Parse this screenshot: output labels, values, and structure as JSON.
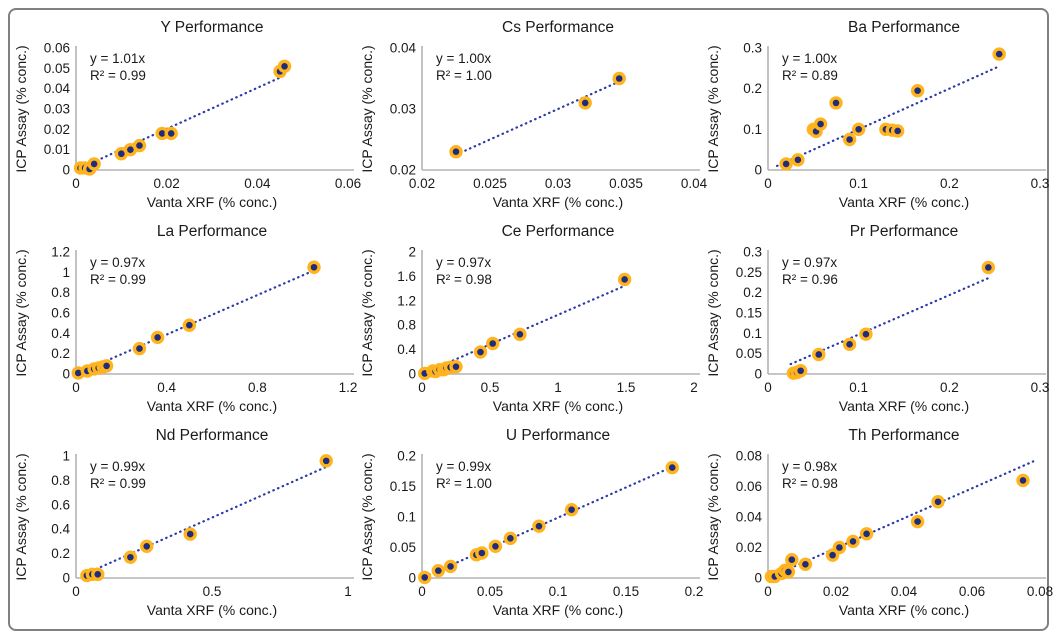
{
  "figure": {
    "kind": "3x3 scatter plot panel comparing Vanta XRF readings to ICP Assay values for nine elements",
    "border_color": "#808080",
    "background": "#ffffff"
  },
  "palette": {
    "marker_fill": "#1f2d7b",
    "marker_ring": "#ffb41e",
    "trend_line": "#2a3aa8",
    "axis_line": "#b3b3b3",
    "text": "#1a1a1a"
  },
  "chart_data": [
    {
      "type": "scatter",
      "title": "Y Performance",
      "equation": "y = 1.01x",
      "r_squared": "R² = 0.99",
      "slope": 1.01,
      "xlabel": "Vanta XRF (% conc.)",
      "ylabel": "ICP Assay (% conc.)",
      "xlim": [
        0,
        0.06
      ],
      "ylim": [
        0,
        0.06
      ],
      "xticks": [
        0,
        0.02,
        0.04,
        0.06
      ],
      "xtick_labels": [
        "0",
        "0.02",
        "0.04",
        "0.06"
      ],
      "yticks": [
        0,
        0.01,
        0.02,
        0.03,
        0.04,
        0.05,
        0.06
      ],
      "ytick_labels": [
        "0",
        "0.01",
        "0.02",
        "0.03",
        "0.04",
        "0.05",
        "0.06"
      ],
      "trend_x": [
        0.0005,
        0.046
      ],
      "points": [
        [
          0.001,
          0.001
        ],
        [
          0.002,
          0.001
        ],
        [
          0.003,
          0.0005
        ],
        [
          0.004,
          0.003
        ],
        [
          0.01,
          0.008
        ],
        [
          0.012,
          0.01
        ],
        [
          0.014,
          0.012
        ],
        [
          0.019,
          0.018
        ],
        [
          0.021,
          0.018
        ],
        [
          0.045,
          0.0485
        ],
        [
          0.046,
          0.051
        ]
      ]
    },
    {
      "type": "scatter",
      "title": "Cs Performance",
      "equation": "y = 1.00x",
      "r_squared": "R² = 1.00",
      "slope": 1.0,
      "xlabel": "Vanta XRF (% conc.)",
      "ylabel": "ICP Assay (% conc.)",
      "xlim": [
        0.02,
        0.04
      ],
      "ylim": [
        0.02,
        0.04
      ],
      "xticks": [
        0.02,
        0.025,
        0.03,
        0.035,
        0.04
      ],
      "xtick_labels": [
        "0.02",
        "0.025",
        "0.03",
        "0.035",
        "0.04"
      ],
      "yticks": [
        0.02,
        0.03,
        0.04
      ],
      "ytick_labels": [
        "0.02",
        "0.03",
        "0.04"
      ],
      "trend_x": [
        0.0225,
        0.0345
      ],
      "points": [
        [
          0.0225,
          0.023
        ],
        [
          0.032,
          0.031
        ],
        [
          0.0345,
          0.035
        ]
      ]
    },
    {
      "type": "scatter",
      "title": "Ba Performance",
      "equation": "y = 1.00x",
      "r_squared": "R² = 0.89",
      "slope": 1.0,
      "xlabel": "Vanta XRF (% conc.)",
      "ylabel": "ICP Assay (% conc.)",
      "xlim": [
        0,
        0.3
      ],
      "ylim": [
        0,
        0.3
      ],
      "xticks": [
        0,
        0.1,
        0.2,
        0.3
      ],
      "xtick_labels": [
        "0",
        "0.1",
        "0.2",
        "0.3"
      ],
      "yticks": [
        0,
        0.1,
        0.2,
        0.3
      ],
      "ytick_labels": [
        "0",
        "0.1",
        "0.2",
        "0.3"
      ],
      "trend_x": [
        0.01,
        0.255
      ],
      "points": [
        [
          0.02,
          0.015
        ],
        [
          0.033,
          0.025
        ],
        [
          0.05,
          0.1
        ],
        [
          0.053,
          0.095
        ],
        [
          0.058,
          0.113
        ],
        [
          0.075,
          0.165
        ],
        [
          0.09,
          0.075
        ],
        [
          0.1,
          0.1
        ],
        [
          0.13,
          0.1
        ],
        [
          0.137,
          0.098
        ],
        [
          0.143,
          0.096
        ],
        [
          0.165,
          0.195
        ],
        [
          0.255,
          0.285
        ]
      ]
    },
    {
      "type": "scatter",
      "title": "La Performance",
      "equation": "y = 0.97x",
      "r_squared": "R² = 0.99",
      "slope": 0.97,
      "xlabel": "Vanta XRF (% conc.)",
      "ylabel": "ICP Assay (% conc.)",
      "xlim": [
        0,
        1.2
      ],
      "ylim": [
        0,
        1.2
      ],
      "xticks": [
        0,
        0.4,
        0.8,
        1.2
      ],
      "xtick_labels": [
        "0",
        "0.4",
        "0.8",
        "1.2"
      ],
      "yticks": [
        0,
        0.2,
        0.4,
        0.6,
        0.8,
        1,
        1.2
      ],
      "ytick_labels": [
        "0",
        "0.2",
        "0.4",
        "0.6",
        "0.8",
        "1",
        "1.2"
      ],
      "trend_x": [
        0.01,
        1.05
      ],
      "points": [
        [
          0.01,
          0.01
        ],
        [
          0.05,
          0.03
        ],
        [
          0.08,
          0.05
        ],
        [
          0.1,
          0.06
        ],
        [
          0.12,
          0.07
        ],
        [
          0.135,
          0.08
        ],
        [
          0.28,
          0.25
        ],
        [
          0.36,
          0.36
        ],
        [
          0.5,
          0.48
        ],
        [
          1.05,
          1.05
        ]
      ]
    },
    {
      "type": "scatter",
      "title": "Ce Performance",
      "equation": "y = 0.97x",
      "r_squared": "R² = 0.98",
      "slope": 0.97,
      "xlabel": "Vanta XRF (% conc.)",
      "ylabel": "ICP Assay (% conc.)",
      "xlim": [
        0,
        2
      ],
      "ylim": [
        0,
        2
      ],
      "xticks": [
        0,
        0.5,
        1,
        1.5,
        2
      ],
      "xtick_labels": [
        "0",
        "0.5",
        "1",
        "1.5",
        "2"
      ],
      "yticks": [
        0,
        0.4,
        0.8,
        1.2,
        1.6,
        2
      ],
      "ytick_labels": [
        "0",
        "0.4",
        "0.8",
        "1.2",
        "1.6",
        "2"
      ],
      "trend_x": [
        0.02,
        1.49
      ],
      "points": [
        [
          0.02,
          0.01
        ],
        [
          0.08,
          0.05
        ],
        [
          0.1,
          0.04
        ],
        [
          0.13,
          0.07
        ],
        [
          0.16,
          0.07
        ],
        [
          0.18,
          0.1
        ],
        [
          0.21,
          0.11
        ],
        [
          0.25,
          0.12
        ],
        [
          0.43,
          0.36
        ],
        [
          0.52,
          0.5
        ],
        [
          0.72,
          0.65
        ],
        [
          1.49,
          1.55
        ]
      ]
    },
    {
      "type": "scatter",
      "title": "Pr Performance",
      "equation": "y = 0.97x",
      "r_squared": "R² = 0.96",
      "slope": 0.97,
      "xlabel": "Vanta XRF (% conc.)",
      "ylabel": "ICP Assay (% conc.)",
      "xlim": [
        0,
        0.3
      ],
      "ylim": [
        0,
        0.3
      ],
      "xticks": [
        0,
        0.1,
        0.2,
        0.3
      ],
      "xtick_labels": [
        "0",
        "0.1",
        "0.2",
        "0.3"
      ],
      "yticks": [
        0,
        0.05,
        0.1,
        0.15,
        0.2,
        0.25,
        0.3
      ],
      "ytick_labels": [
        "0",
        "0.05",
        "0.1",
        "0.15",
        "0.2",
        "0.25",
        "0.3"
      ],
      "trend_x": [
        0.025,
        0.245
      ],
      "points": [
        [
          0.028,
          0.002
        ],
        [
          0.032,
          0.004
        ],
        [
          0.036,
          0.008
        ],
        [
          0.056,
          0.048
        ],
        [
          0.09,
          0.073
        ],
        [
          0.108,
          0.098
        ],
        [
          0.243,
          0.262
        ]
      ]
    },
    {
      "type": "scatter",
      "title": "Nd Performance",
      "equation": "y = 0.99x",
      "r_squared": "R² = 0.99",
      "slope": 0.99,
      "xlabel": "Vanta XRF (% conc.)",
      "ylabel": "ICP Assay (% conc.)",
      "xlim": [
        0,
        1
      ],
      "ylim": [
        0,
        1
      ],
      "xticks": [
        0,
        0.5,
        1
      ],
      "xtick_labels": [
        "0",
        "0.5",
        "1"
      ],
      "yticks": [
        0,
        0.2,
        0.4,
        0.6,
        0.8,
        1
      ],
      "ytick_labels": [
        "0",
        "0.2",
        "0.4",
        "0.6",
        "0.8",
        "1"
      ],
      "trend_x": [
        0.04,
        0.93
      ],
      "points": [
        [
          0.04,
          0.02
        ],
        [
          0.06,
          0.03
        ],
        [
          0.08,
          0.03
        ],
        [
          0.2,
          0.17
        ],
        [
          0.26,
          0.26
        ],
        [
          0.42,
          0.36
        ],
        [
          0.92,
          0.96
        ]
      ]
    },
    {
      "type": "scatter",
      "title": "U Performance",
      "equation": "y = 0.99x",
      "r_squared": "R² = 1.00",
      "slope": 0.99,
      "xlabel": "Vanta XRF (% conc.)",
      "ylabel": "ICP Assay (% conc.)",
      "xlim": [
        0,
        0.2
      ],
      "ylim": [
        0,
        0.2
      ],
      "xticks": [
        0,
        0.05,
        0.1,
        0.15,
        0.2
      ],
      "xtick_labels": [
        "0",
        "0.05",
        "0.1",
        "0.15",
        "0.2"
      ],
      "yticks": [
        0,
        0.05,
        0.1,
        0.15,
        0.2
      ],
      "ytick_labels": [
        "0",
        "0.05",
        "0.1",
        "0.15",
        "0.2"
      ],
      "trend_x": [
        0.002,
        0.185
      ],
      "points": [
        [
          0.002,
          0.001
        ],
        [
          0.012,
          0.012
        ],
        [
          0.021,
          0.019
        ],
        [
          0.04,
          0.038
        ],
        [
          0.044,
          0.041
        ],
        [
          0.054,
          0.052
        ],
        [
          0.065,
          0.065
        ],
        [
          0.086,
          0.085
        ],
        [
          0.11,
          0.112
        ],
        [
          0.184,
          0.181
        ]
      ]
    },
    {
      "type": "scatter",
      "title": "Th Performance",
      "equation": "y = 0.98x",
      "r_squared": "R² = 0.98",
      "slope": 0.98,
      "xlabel": "Vanta XRF (% conc.)",
      "ylabel": "ICP Assay (% conc.)",
      "xlim": [
        0,
        0.08
      ],
      "ylim": [
        0,
        0.08
      ],
      "xticks": [
        0,
        0.02,
        0.04,
        0.06,
        0.08
      ],
      "xtick_labels": [
        "0",
        "0.02",
        "0.04",
        "0.06",
        "0.08"
      ],
      "yticks": [
        0,
        0.02,
        0.04,
        0.06,
        0.08
      ],
      "ytick_labels": [
        "0",
        "0.02",
        "0.04",
        "0.06",
        "0.08"
      ],
      "trend_x": [
        0.001,
        0.078
      ],
      "points": [
        [
          0.001,
          0.001
        ],
        [
          0.002,
          0.001
        ],
        [
          0.004,
          0.003
        ],
        [
          0.005,
          0.005
        ],
        [
          0.006,
          0.004
        ],
        [
          0.007,
          0.012
        ],
        [
          0.011,
          0.009
        ],
        [
          0.019,
          0.015
        ],
        [
          0.021,
          0.02
        ],
        [
          0.025,
          0.024
        ],
        [
          0.029,
          0.029
        ],
        [
          0.044,
          0.037
        ],
        [
          0.05,
          0.05
        ],
        [
          0.075,
          0.064
        ]
      ]
    }
  ]
}
